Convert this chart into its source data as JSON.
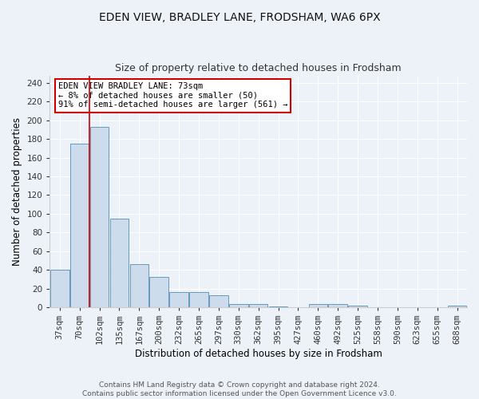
{
  "title1": "EDEN VIEW, BRADLEY LANE, FRODSHAM, WA6 6PX",
  "title2": "Size of property relative to detached houses in Frodsham",
  "xlabel": "Distribution of detached houses by size in Frodsham",
  "ylabel": "Number of detached properties",
  "bar_labels": [
    "37sqm",
    "70sqm",
    "102sqm",
    "135sqm",
    "167sqm",
    "200sqm",
    "232sqm",
    "265sqm",
    "297sqm",
    "330sqm",
    "362sqm",
    "395sqm",
    "427sqm",
    "460sqm",
    "492sqm",
    "525sqm",
    "558sqm",
    "590sqm",
    "623sqm",
    "655sqm",
    "688sqm"
  ],
  "bar_values": [
    40,
    175,
    193,
    95,
    46,
    32,
    16,
    16,
    13,
    3,
    3,
    1,
    0,
    3,
    3,
    2,
    0,
    0,
    0,
    0,
    2
  ],
  "bar_color": "#ccdcec",
  "bar_edge_color": "#6699bb",
  "vline_x": 1.5,
  "vline_color": "#cc0000",
  "annotation_text": "EDEN VIEW BRADLEY LANE: 73sqm\n← 8% of detached houses are smaller (50)\n91% of semi-detached houses are larger (561) →",
  "annotation_box_color": "#ffffff",
  "annotation_box_edge": "#cc0000",
  "ylim": [
    0,
    248
  ],
  "yticks": [
    0,
    20,
    40,
    60,
    80,
    100,
    120,
    140,
    160,
    180,
    200,
    220,
    240
  ],
  "bg_color": "#edf2f9",
  "footer": "Contains HM Land Registry data © Crown copyright and database right 2024.\nContains public sector information licensed under the Open Government Licence v3.0.",
  "title1_fontsize": 10,
  "title2_fontsize": 9,
  "xlabel_fontsize": 8.5,
  "ylabel_fontsize": 8.5,
  "tick_fontsize": 7.5,
  "footer_fontsize": 6.5
}
